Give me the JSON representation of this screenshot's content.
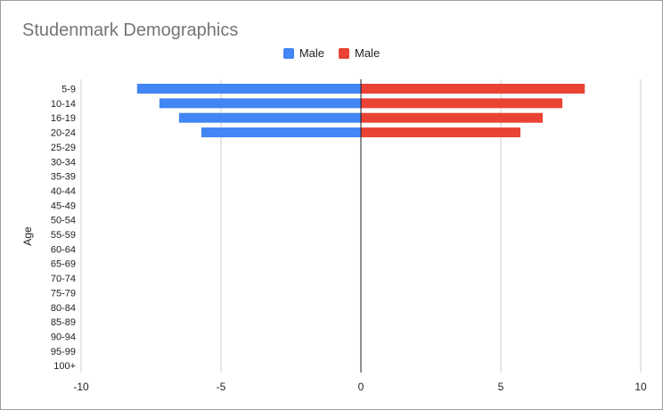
{
  "chart_data": {
    "type": "bar",
    "orientation": "horizontal",
    "title": "Studenmark Demographics",
    "xlabel": "",
    "ylabel": "Age",
    "xlim": [
      -10,
      10
    ],
    "xticks": [
      -10,
      -5,
      0,
      5,
      10
    ],
    "grid": true,
    "legend_position": "top",
    "categories": [
      "5-9",
      "10-14",
      "16-19",
      "20-24",
      "25-29",
      "30-34",
      "35-39",
      "40-44",
      "45-49",
      "50-54",
      "55-59",
      "60-64",
      "65-69",
      "70-74",
      "75-79",
      "80-84",
      "85-89",
      "90-94",
      "95-99",
      "100+"
    ],
    "series": [
      {
        "name": "Male",
        "color": "#4285f4",
        "values": [
          -8,
          -7.2,
          -6.5,
          -5.7,
          null,
          null,
          null,
          null,
          null,
          null,
          null,
          null,
          null,
          null,
          null,
          null,
          null,
          null,
          null,
          null
        ]
      },
      {
        "name": "Male",
        "color": "#ea4335",
        "values": [
          8,
          7.2,
          6.5,
          5.7,
          null,
          null,
          null,
          null,
          null,
          null,
          null,
          null,
          null,
          null,
          null,
          null,
          null,
          null,
          null,
          null
        ]
      }
    ]
  }
}
